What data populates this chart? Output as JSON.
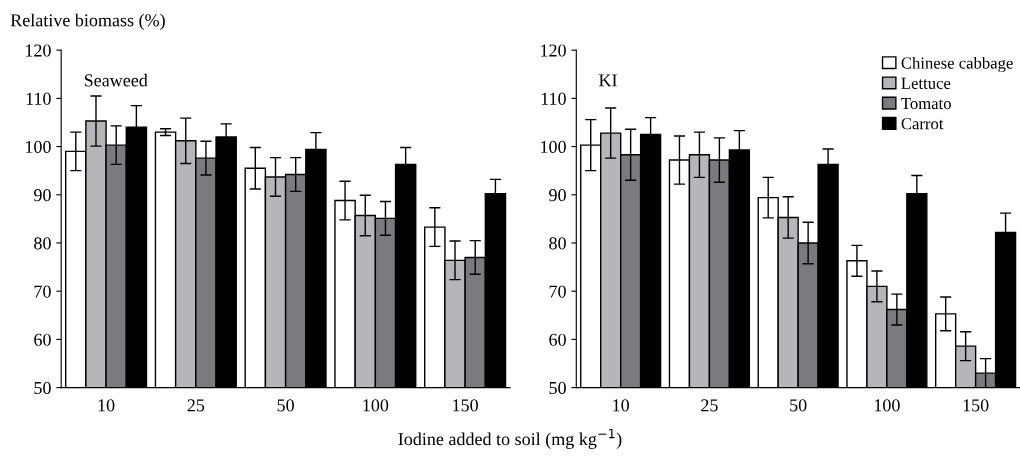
{
  "chart_data": [
    {
      "type": "bar",
      "title": "Seaweed",
      "ylabel": "Relative biomass (%)",
      "xlabel": "Iodine added to soil (mg kg$^{−1}$)",
      "categories": [
        "10",
        "25",
        "50",
        "100",
        "150"
      ],
      "ylim": [
        50,
        120
      ],
      "yticks": [
        50,
        60,
        70,
        80,
        90,
        100,
        110,
        120
      ],
      "grid": false,
      "legend": false,
      "series": [
        {
          "color": "#ffffff",
          "values": [
            99,
            103,
            95.5,
            88.8,
            83.3
          ],
          "errors": [
            4,
            0.7,
            4.3,
            4,
            4
          ]
        },
        {
          "color": "#b4b6b9",
          "values": [
            105.3,
            101.2,
            93.7,
            85.7,
            76.4
          ],
          "errors": [
            5.2,
            4.7,
            4,
            4.2,
            4
          ]
        },
        {
          "color": "#7a7b7f",
          "values": [
            100.3,
            97.6,
            94.2,
            85.1,
            77
          ],
          "errors": [
            4,
            3.5,
            3.5,
            3.5,
            3.5
          ]
        },
        {
          "color": "#000000",
          "values": [
            104,
            102,
            99.4,
            96.3,
            90.2
          ],
          "errors": [
            4.5,
            2.7,
            3.5,
            3.5,
            3
          ]
        }
      ]
    },
    {
      "type": "bar",
      "title": "KI",
      "categories": [
        "10",
        "25",
        "50",
        "100",
        "150"
      ],
      "ylim": [
        50,
        120
      ],
      "yticks": [
        50,
        60,
        70,
        80,
        90,
        100,
        110,
        120
      ],
      "grid": false,
      "legend": "top right",
      "series": [
        {
          "name": "Chinese cabbage",
          "color": "#ffffff",
          "values": [
            100.3,
            97.2,
            89.4,
            76.3,
            65.3
          ],
          "errors": [
            5.3,
            5,
            4.2,
            3.2,
            3.5
          ]
        },
        {
          "name": "Lettuce",
          "color": "#b4b6b9",
          "values": [
            102.8,
            98.3,
            85.3,
            71,
            58.6
          ],
          "errors": [
            5.2,
            4.7,
            4.3,
            3.2,
            3
          ]
        },
        {
          "name": "Tomato",
          "color": "#7a7b7f",
          "values": [
            98.3,
            97.2,
            80,
            66.2,
            53
          ],
          "errors": [
            5.3,
            4.6,
            4.3,
            3.2,
            3
          ]
        },
        {
          "name": "Carrot",
          "color": "#000000",
          "values": [
            102.5,
            99.3,
            96.3,
            90.2,
            82.2
          ],
          "errors": [
            3.5,
            4,
            3.2,
            3.8,
            4
          ]
        }
      ]
    }
  ]
}
